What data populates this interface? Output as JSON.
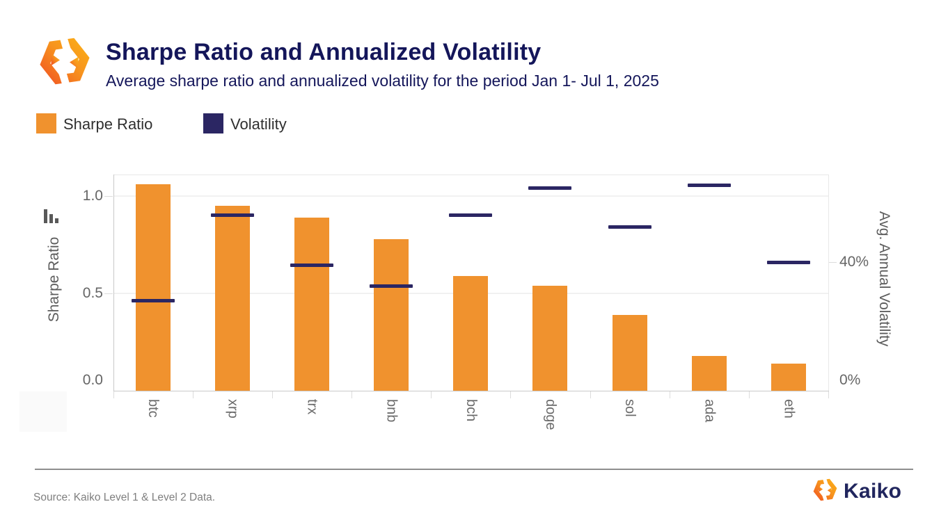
{
  "header": {
    "title": "Sharpe Ratio and Annualized Volatility",
    "subtitle": "Average sharpe ratio and annualized volatility for the period Jan 1- Jul 1, 2025"
  },
  "legend": {
    "items": [
      {
        "label": "Sharpe Ratio",
        "color": "#F0922E"
      },
      {
        "label": "Volatility",
        "color": "#2B2663"
      }
    ]
  },
  "chart_data": {
    "type": "bar",
    "title": "Sharpe Ratio and Annualized Volatility",
    "categories": [
      "btc",
      "xrp",
      "trx",
      "bnb",
      "bch",
      "doge",
      "sol",
      "ada",
      "eth"
    ],
    "series": [
      {
        "name": "Sharpe Ratio",
        "type": "bar",
        "axis": "left",
        "color": "#F0922E",
        "values": [
          1.06,
          0.95,
          0.89,
          0.78,
          0.59,
          0.54,
          0.39,
          0.18,
          0.14
        ]
      },
      {
        "name": "Volatility",
        "type": "tick-marker",
        "axis": "right",
        "color": "#2B2663",
        "unit": "percent",
        "values": [
          27,
          56,
          39,
          32,
          56,
          65,
          52,
          66,
          40
        ]
      }
    ],
    "left_axis": {
      "title": "Sharpe Ratio",
      "tick_labels": [
        "0.0",
        "0.5",
        "1.0"
      ],
      "tick_values": [
        0,
        0.5,
        1.0
      ],
      "range": [
        0,
        1.11
      ]
    },
    "right_axis": {
      "title": "Avg. Annual Volatility",
      "tick_labels": [
        "0%",
        "40%"
      ],
      "tick_values": [
        0,
        40
      ],
      "range_pct": [
        0,
        73
      ]
    },
    "grid": "horizontal-only",
    "legend_position": "top-left"
  },
  "footer": {
    "source": "Source: Kaiko Level 1 & Level 2 Data.",
    "brand_wordmark": "Kaiko"
  },
  "colors": {
    "navy_text": "#14165a",
    "bar_orange": "#F0922E",
    "marker_navy": "#2B2663",
    "grey_text": "#666666"
  }
}
